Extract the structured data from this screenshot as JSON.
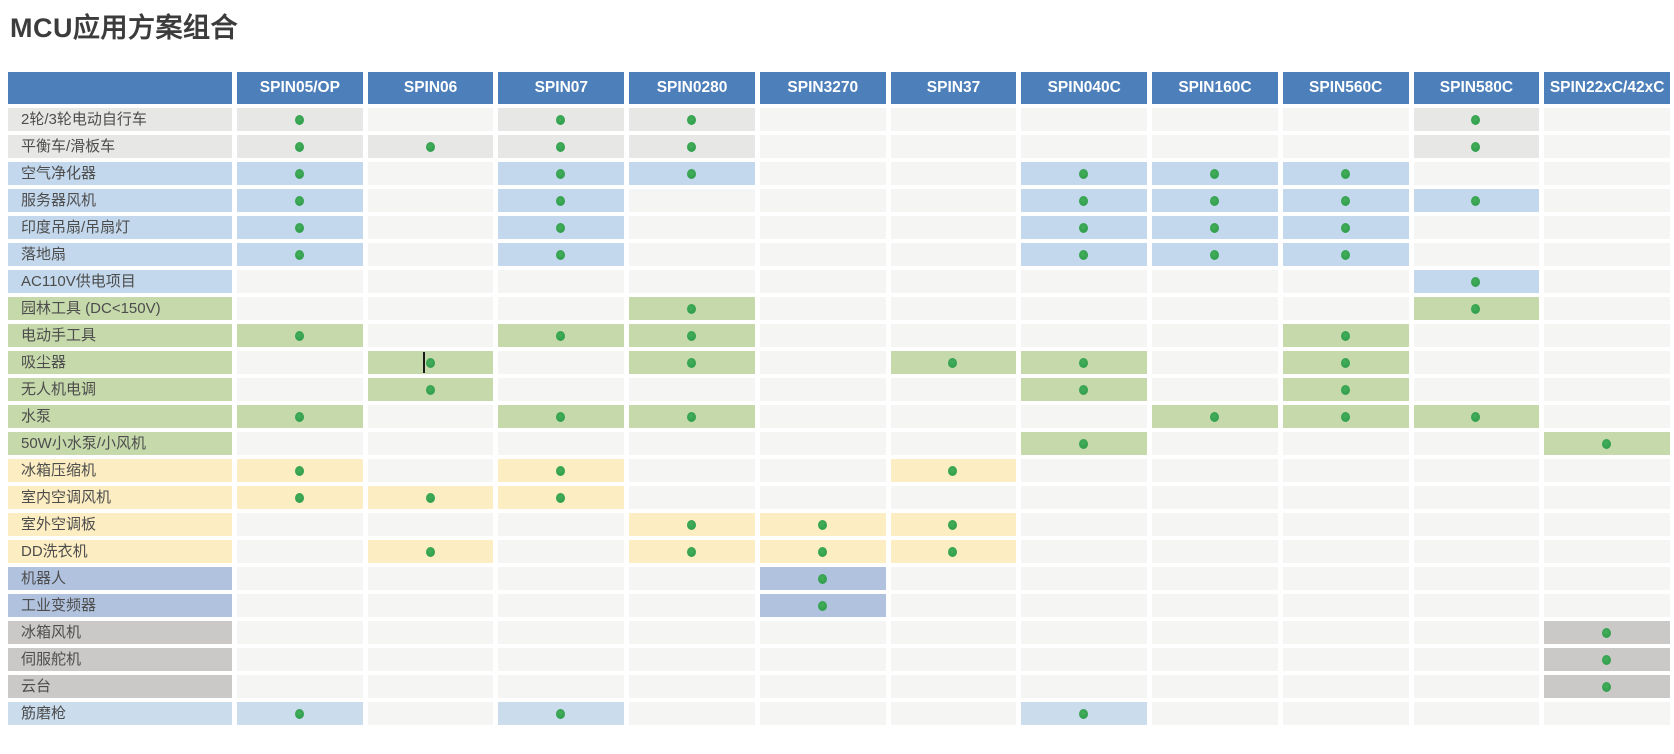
{
  "title": "MCU应用方案组合",
  "colors": {
    "header_bg": "#4d7fba",
    "header_text": "#ffffff",
    "plain_cell": "#f5f5f3",
    "dot_green": "#2f9e4d",
    "dot_green_light": "#44ad59",
    "title_text": "#3c3c3c",
    "label_text": "#4d4d4d",
    "groups": {
      "gray": "#e7e7e5",
      "blue": "#c3d8ec",
      "green": "#c6d9ab",
      "yellow": "#fcedc2",
      "periwinkle": "#b1c2df",
      "gray2": "#cac9c8",
      "lightblue": "#cbdcec"
    }
  },
  "table": {
    "corner_label": "",
    "columns": [
      "SPIN05/OP",
      "SPIN06",
      "SPIN07",
      "SPIN0280",
      "SPIN3270",
      "SPIN37",
      "SPIN040C",
      "SPIN160C",
      "SPIN560C",
      "SPIN580C",
      "SPIN22xC/42xC"
    ],
    "dot_symbol": "supported",
    "cursor_artifact": {
      "row": 9,
      "col": 1
    },
    "rows": [
      {
        "label": "2轮/3轮电动自行车",
        "group": "gray",
        "dots": [
          0,
          2,
          3,
          9
        ]
      },
      {
        "label": "平衡车/滑板车",
        "group": "gray",
        "dots": [
          0,
          1,
          2,
          3,
          9
        ]
      },
      {
        "label": "空气净化器",
        "group": "blue",
        "dots": [
          0,
          2,
          3,
          6,
          7,
          8
        ]
      },
      {
        "label": "服务器风机",
        "group": "blue",
        "dots": [
          0,
          2,
          6,
          7,
          8,
          9
        ]
      },
      {
        "label": "印度吊扇/吊扇灯",
        "group": "blue",
        "dots": [
          0,
          2,
          6,
          7,
          8
        ]
      },
      {
        "label": "落地扇",
        "group": "blue",
        "dots": [
          0,
          2,
          6,
          7,
          8
        ]
      },
      {
        "label": "AC110V供电项目",
        "group": "blue",
        "dots": [
          9
        ]
      },
      {
        "label": "园林工具 (DC<150V)",
        "group": "green",
        "dots": [
          3,
          9
        ]
      },
      {
        "label": "电动手工具",
        "group": "green",
        "dots": [
          0,
          2,
          3,
          8
        ]
      },
      {
        "label": "吸尘器",
        "group": "green",
        "dots": [
          1,
          3,
          5,
          6,
          8
        ]
      },
      {
        "label": "无人机电调",
        "group": "green",
        "dots": [
          1,
          6,
          8
        ]
      },
      {
        "label": "水泵",
        "group": "green",
        "dots": [
          0,
          2,
          3,
          7,
          8,
          9
        ]
      },
      {
        "label": "50W小水泵/小风机",
        "group": "green",
        "dots": [
          6,
          10
        ]
      },
      {
        "label": "冰箱压缩机",
        "group": "yellow",
        "dots": [
          0,
          2,
          5
        ]
      },
      {
        "label": "室内空调风机",
        "group": "yellow",
        "dots": [
          0,
          1,
          2
        ]
      },
      {
        "label": "室外空调板",
        "group": "yellow",
        "dots": [
          3,
          4,
          5
        ]
      },
      {
        "label": "DD洗衣机",
        "group": "yellow",
        "dots": [
          1,
          3,
          4,
          5
        ]
      },
      {
        "label": "机器人",
        "group": "periwinkle",
        "dots": [
          4
        ]
      },
      {
        "label": "工业变频器",
        "group": "periwinkle",
        "dots": [
          4
        ]
      },
      {
        "label": "冰箱风机",
        "group": "gray2",
        "dots": [
          10
        ]
      },
      {
        "label": "伺服舵机",
        "group": "gray2",
        "dots": [
          10
        ]
      },
      {
        "label": "云台",
        "group": "gray2",
        "dots": [
          10
        ]
      },
      {
        "label": "筋磨枪",
        "group": "lightblue",
        "dots": [
          0,
          2,
          6
        ]
      }
    ]
  }
}
